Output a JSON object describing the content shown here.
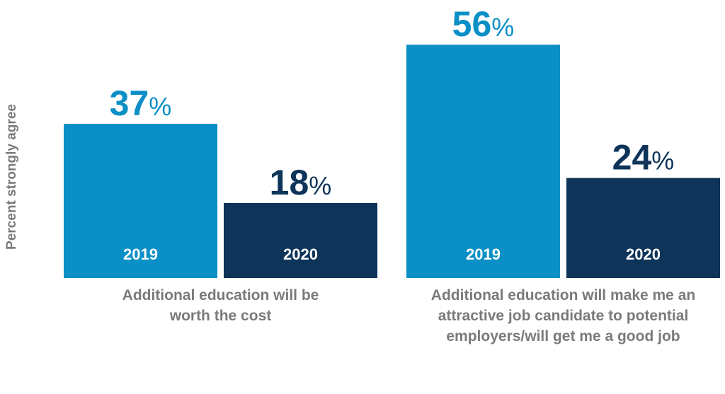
{
  "chart_data": {
    "type": "bar",
    "ylabel": "Percent strongly agree",
    "categories": [
      [
        "Additional education will be",
        "worth the cost"
      ],
      [
        "Additional education will make me an",
        "attractive job candidate to potential",
        "employers/will get me a good job"
      ]
    ],
    "series": [
      {
        "name": "2019",
        "values": [
          37,
          56
        ]
      },
      {
        "name": "2020",
        "values": [
          18,
          24
        ]
      }
    ],
    "value_suffix": "%",
    "ylim": [
      0,
      56
    ],
    "legend": "none",
    "grid": false
  },
  "colors": {
    "series_2019": "#0a8fc6",
    "series_2020": "#0e3459",
    "label_2019": "#0a8fc6",
    "label_2020": "#0e3459",
    "axis_text": "#7a7a7a"
  }
}
